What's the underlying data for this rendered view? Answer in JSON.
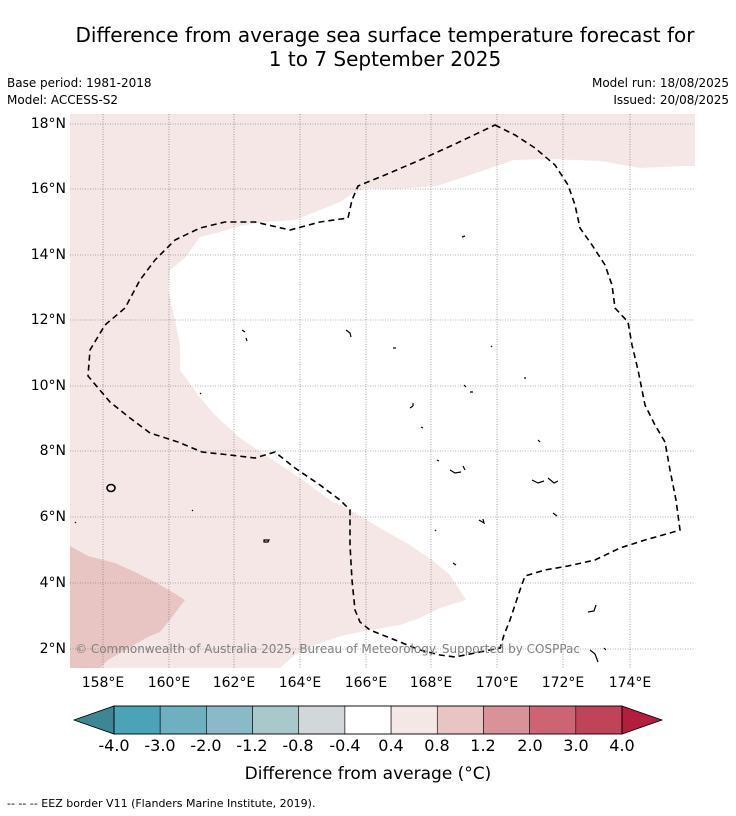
{
  "title": {
    "line1": "Difference from average sea surface temperature forecast for",
    "line2": "1 to 7 September 2025"
  },
  "meta": {
    "base_period": "Base period: 1981-2018",
    "model": "Model: ACCESS-S2",
    "model_run": "Model run: 18/08/2025",
    "issued": "Issued: 20/08/2025"
  },
  "map": {
    "lon_range": [
      157,
      176
    ],
    "lat_range": [
      1.5,
      18.3
    ],
    "lat_ticks": [
      "18°N",
      "16°N",
      "14°N",
      "12°N",
      "10°N",
      "8°N",
      "6°N",
      "4°N",
      "2°N"
    ],
    "lon_ticks": [
      "158°E",
      "160°E",
      "162°E",
      "164°E",
      "166°E",
      "168°E",
      "170°E",
      "172°E",
      "174°E"
    ],
    "grid": true,
    "regions": [
      {
        "name": "0.4 to 0.8 anomaly",
        "color": "#f5e7e6"
      },
      {
        "name": "0.8 to 1.2 anomaly",
        "color": "#e8c5c2"
      },
      {
        "name": "-0.4 to 0.4 anomaly",
        "color": "#ffffff"
      }
    ],
    "eez_border_style": "dashed black",
    "credit": "© Commonwealth of Australia 2025, Bureau of Meteorology. Supported by COSPPac"
  },
  "colorbar": {
    "labels": [
      "-4.0",
      "-3.0",
      "-2.0",
      "-1.2",
      "-0.8",
      "-0.4",
      "0.4",
      "0.8",
      "1.2",
      "2.0",
      "3.0",
      "4.0"
    ],
    "colors": [
      "#4aa3b6",
      "#6eb0c0",
      "#8bbac7",
      "#a9c8cc",
      "#d2d8d9",
      "#ffffff",
      "#f5e7e6",
      "#e8c5c2",
      "#d9919a",
      "#cc6473",
      "#c04457"
    ],
    "low_extend_color": "#3d8694",
    "high_extend_color": "#b41d3c",
    "title": "Difference from average (°C)"
  },
  "footer": "--  --  -- EEZ border V11 (Flanders Marine Institute, 2019)."
}
